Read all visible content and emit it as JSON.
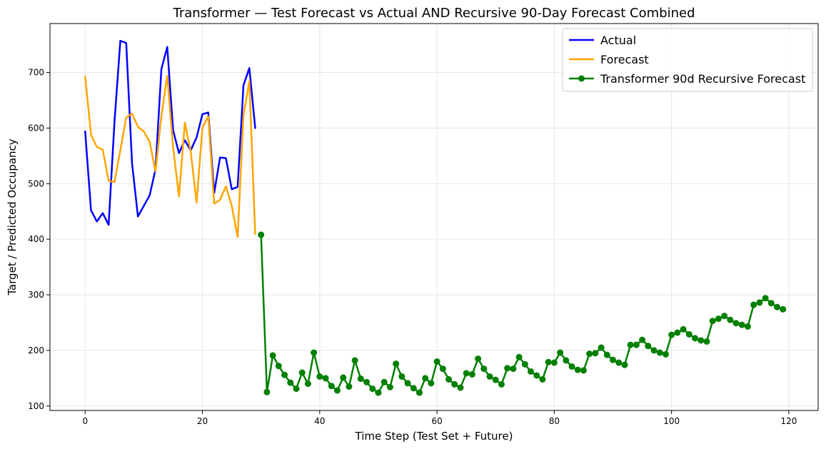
{
  "chart_data": {
    "type": "line",
    "title": "Transformer — Test Forecast vs Actual AND Recursive 90-Day Forecast Combined",
    "xlabel": "Time Step (Test Set + Future)",
    "ylabel": "Target / Predicted Occupancy",
    "xlim": [
      -6,
      125
    ],
    "ylim": [
      92,
      788
    ],
    "x_ticks": [
      0,
      20,
      40,
      60,
      80,
      100,
      120
    ],
    "y_ticks": [
      100,
      200,
      300,
      400,
      500,
      600,
      700
    ],
    "grid": true,
    "legend_position": "top-right",
    "series": [
      {
        "name": "Actual",
        "color": "#0000ff",
        "marker": false,
        "x": [
          0,
          1,
          2,
          3,
          4,
          5,
          6,
          7,
          8,
          9,
          10,
          11,
          12,
          13,
          14,
          15,
          16,
          17,
          18,
          19,
          20,
          21,
          22,
          23,
          24,
          25,
          26,
          27,
          28,
          29
        ],
        "values": [
          594,
          452,
          432,
          447,
          426,
          611,
          757,
          753,
          536,
          441,
          460,
          479,
          526,
          706,
          746,
          596,
          555,
          578,
          560,
          583,
          625,
          628,
          483,
          547,
          546,
          490,
          494,
          677,
          708,
          600
        ]
      },
      {
        "name": "Forecast",
        "color": "#ffa500",
        "marker": false,
        "x": [
          0,
          1,
          2,
          3,
          4,
          5,
          6,
          7,
          8,
          9,
          10,
          11,
          12,
          13,
          14,
          15,
          16,
          17,
          18,
          19,
          20,
          21,
          22,
          23,
          24,
          25,
          26,
          27,
          28,
          29
        ],
        "values": [
          693,
          588,
          566,
          561,
          505,
          503,
          560,
          619,
          626,
          602,
          594,
          575,
          522,
          622,
          694,
          565,
          477,
          610,
          558,
          466,
          601,
          621,
          464,
          471,
          495,
          460,
          404,
          624,
          684,
          409
        ]
      },
      {
        "name": "Transformer 90d Recursive Forecast",
        "color": "#008000",
        "marker": true,
        "x": [
          30,
          31,
          32,
          33,
          34,
          35,
          36,
          37,
          38,
          39,
          40,
          41,
          42,
          43,
          44,
          45,
          46,
          47,
          48,
          49,
          50,
          51,
          52,
          53,
          54,
          55,
          56,
          57,
          58,
          59,
          60,
          61,
          62,
          63,
          64,
          65,
          66,
          67,
          68,
          69,
          70,
          71,
          72,
          73,
          74,
          75,
          76,
          77,
          78,
          79,
          80,
          81,
          82,
          83,
          84,
          85,
          86,
          87,
          88,
          89,
          90,
          91,
          92,
          93,
          94,
          95,
          96,
          97,
          98,
          99,
          100,
          101,
          102,
          103,
          104,
          105,
          106,
          107,
          108,
          109,
          110,
          111,
          112,
          113,
          114,
          115,
          116,
          117,
          118,
          119
        ],
        "values": [
          408,
          125,
          191,
          172,
          156,
          142,
          131,
          160,
          140,
          196,
          153,
          150,
          136,
          128,
          151,
          135,
          182,
          149,
          143,
          131,
          124,
          143,
          134,
          176,
          153,
          141,
          132,
          124,
          150,
          141,
          180,
          167,
          148,
          139,
          133,
          159,
          157,
          185,
          167,
          153,
          147,
          139,
          168,
          167,
          188,
          175,
          162,
          155,
          148,
          179,
          178,
          196,
          182,
          171,
          165,
          164,
          194,
          195,
          205,
          192,
          183,
          178,
          174,
          210,
          210,
          219,
          208,
          200,
          196,
          193,
          228,
          232,
          238,
          229,
          222,
          218,
          216,
          253,
          257,
          262,
          255,
          249,
          246,
          243,
          282,
          286,
          294,
          285,
          278,
          274
        ]
      }
    ]
  }
}
